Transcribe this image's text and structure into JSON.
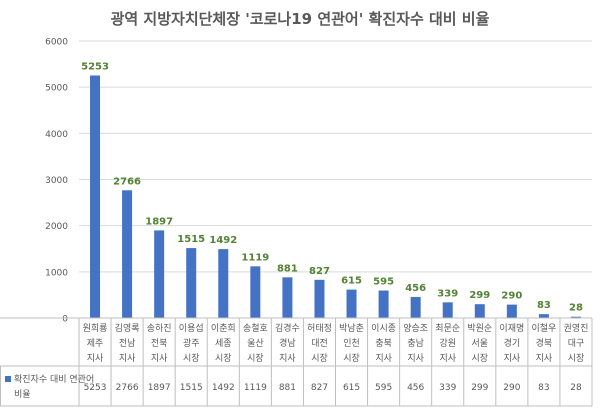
{
  "chart_data": {
    "type": "bar",
    "title": "광역 지방자치단체장 '코로나19 연관어' 확진자수 대비 비율",
    "ylim": [
      0,
      6000
    ],
    "yticks": [
      0,
      1000,
      2000,
      3000,
      4000,
      5000,
      6000
    ],
    "grid": true,
    "categories": [
      [
        "원희룡",
        "제주",
        "지사"
      ],
      [
        "김영록",
        "전남",
        "지사"
      ],
      [
        "송하진",
        "전북",
        "지사"
      ],
      [
        "이용섭",
        "광주",
        "시장"
      ],
      [
        "이춘희",
        "세종",
        "시장"
      ],
      [
        "송철호",
        "울산",
        "시장"
      ],
      [
        "김경수",
        "경남",
        "지사"
      ],
      [
        "허태정",
        "대전",
        "시장"
      ],
      [
        "박남춘",
        "인천",
        "시장"
      ],
      [
        "이시종",
        "충북",
        "지사"
      ],
      [
        "양승조",
        "충남",
        "지사"
      ],
      [
        "최문순",
        "강원",
        "지사"
      ],
      [
        "박원순",
        "서울",
        "시장"
      ],
      [
        "이재명",
        "경기",
        "지사"
      ],
      [
        "이철우",
        "경북",
        "지사"
      ],
      [
        "권영진",
        "대구",
        "시장"
      ]
    ],
    "series": [
      {
        "name": "확진자수 대비 연관어 비율",
        "values": [
          5253,
          2766,
          1897,
          1515,
          1492,
          1119,
          881,
          827,
          615,
          595,
          456,
          339,
          299,
          290,
          83,
          28
        ]
      }
    ],
    "colors": {
      "bar": "#4472C4",
      "data_label": "#548235",
      "axis_text": "#595959",
      "grid": "#D9D9D9"
    }
  }
}
